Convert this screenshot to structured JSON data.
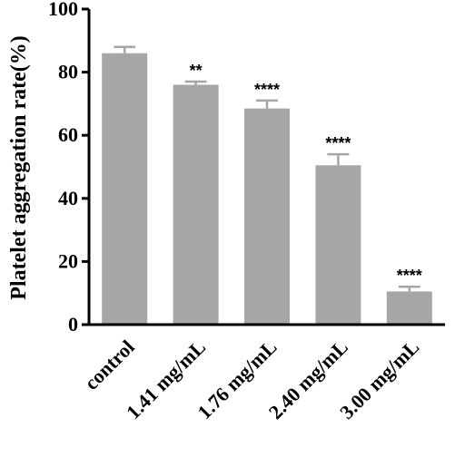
{
  "chart_data": {
    "type": "bar",
    "title": "",
    "xlabel": "",
    "ylabel": "Platelet aggregation rate(%)",
    "ylim": [
      0,
      100
    ],
    "yticks": [
      0,
      20,
      40,
      60,
      80,
      100
    ],
    "categories": [
      "control",
      "1.41 mg/mL",
      "1.76 mg/mL",
      "2.40 mg/mL",
      "3.00 mg/mL"
    ],
    "values": [
      86,
      76,
      68.5,
      50.5,
      10.5
    ],
    "errors": [
      2,
      1,
      2.5,
      3.5,
      1.5
    ],
    "significance": [
      "",
      "**",
      "****",
      "****",
      "****"
    ],
    "bar_color": "#a6a6a6",
    "grid": false
  }
}
